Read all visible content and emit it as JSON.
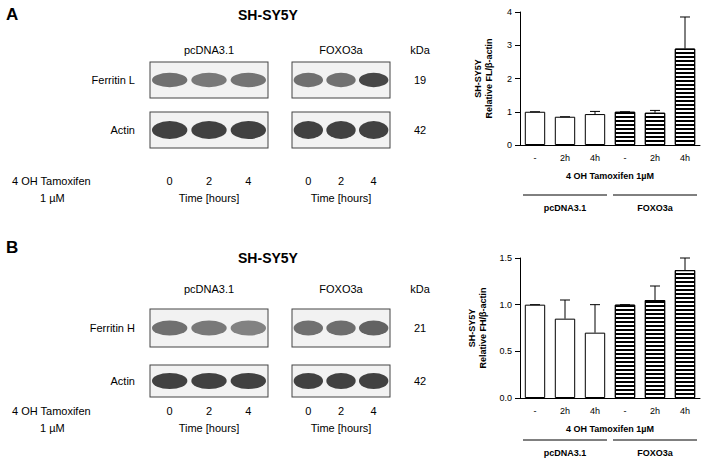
{
  "blots": [
    {
      "label": "A",
      "title": "SH-SY5Y",
      "groups": [
        "pcDNA3.1",
        "FOXO3a"
      ],
      "unit": "kDa",
      "rows": [
        {
          "protein": "Ferritin L",
          "kda": 19
        },
        {
          "protein": "Actin",
          "kda": 42
        }
      ],
      "treatment": [
        "4 OH Tamoxifen",
        "1 µM"
      ],
      "lanes": [
        0,
        2,
        4
      ],
      "time_label": "Time [hours]"
    },
    {
      "label": "B",
      "title": "SH-SY5Y",
      "groups": [
        "pcDNA3.1",
        "FOXO3a"
      ],
      "unit": "kDa",
      "rows": [
        {
          "protein": "Ferritin H",
          "kda": 21
        },
        {
          "protein": "Actin",
          "kda": 42
        }
      ],
      "treatment": [
        "4 OH Tamoxifen",
        "1 µM"
      ],
      "lanes": [
        0,
        2,
        4
      ],
      "time_label": "Time [hours]"
    }
  ],
  "chart_data": [
    {
      "type": "bar",
      "ylabel": "SH-SY5Y\nRelative FL/β-actin",
      "xlabel": "4 OH Tamoxifen 1µM",
      "categories": [
        "-",
        "2h",
        "4h",
        "-",
        "2h",
        "4h"
      ],
      "ylim": [
        0,
        4
      ],
      "yticks": [
        0,
        1,
        2,
        3,
        4
      ],
      "series": [
        {
          "name": "pcDNA3.1",
          "color": "#ffffff",
          "values": [
            1,
            0.85,
            0.93,
            null,
            null,
            null
          ],
          "errors": [
            0,
            0,
            0.08,
            null,
            null,
            null
          ]
        },
        {
          "name": "FOXO3a",
          "color": "#000000",
          "values": [
            null,
            null,
            null,
            1,
            0.97,
            2.9
          ],
          "errors": [
            null,
            null,
            null,
            0,
            0.07,
            0.95
          ]
        }
      ]
    },
    {
      "type": "bar",
      "ylabel": "SH-SY5Y\nRelative FH/β-actin",
      "xlabel": "4 OH Tamoxifen 1µM",
      "categories": [
        "-",
        "2h",
        "4h",
        "-",
        "2h",
        "4h"
      ],
      "ylim": [
        0,
        1.5
      ],
      "yticks": [
        {
          "value": 0,
          "label": "0.0"
        },
        {
          "value": 0.5,
          "label": "0.5"
        },
        {
          "value": 1,
          "label": "1.0"
        },
        {
          "value": 1.5,
          "label": "1.5"
        }
      ],
      "series": [
        {
          "name": "pcDNA3.1",
          "color": "#ffffff",
          "values": [
            1,
            0.85,
            0.7,
            null,
            null,
            null
          ],
          "errors": [
            0,
            0.2,
            0.3,
            null,
            null,
            null
          ]
        },
        {
          "name": "FOXO3a",
          "color": "#000000",
          "values": [
            null,
            null,
            null,
            1,
            1.05,
            1.37
          ],
          "errors": [
            null,
            null,
            null,
            0,
            0.15,
            0.13
          ]
        }
      ]
    }
  ]
}
